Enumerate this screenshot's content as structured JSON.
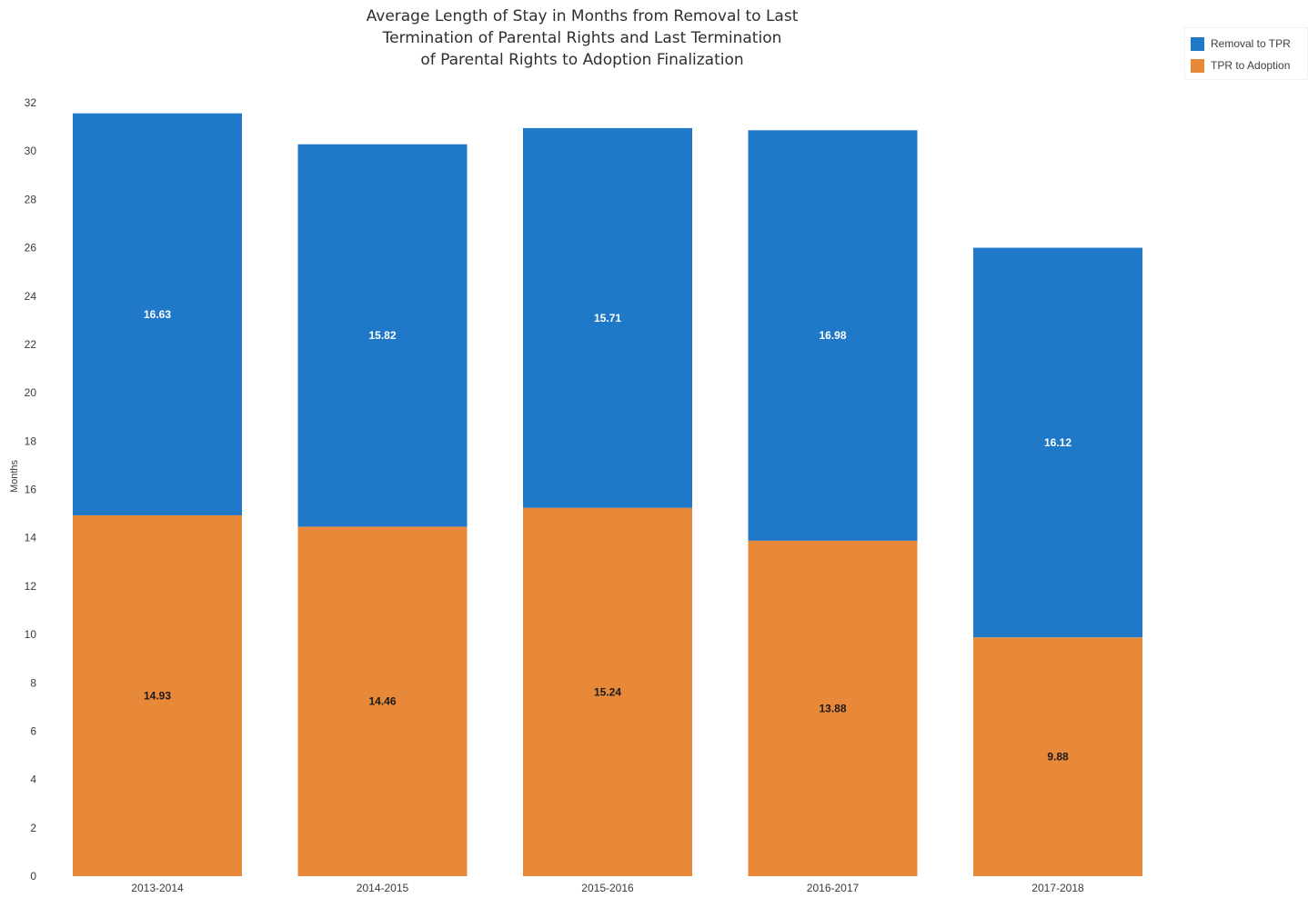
{
  "chart_data": {
    "type": "bar",
    "stacked": true,
    "title_lines": [
      "Average Length of Stay in Months from Removal to Last",
      "Termination of Parental Rights and Last Termination",
      "of Parental Rights to Adoption Finalization"
    ],
    "ylabel": "Months",
    "xlabel": "",
    "ylim": [
      0,
      32
    ],
    "yticks": [
      0,
      2,
      4,
      6,
      8,
      10,
      12,
      14,
      16,
      18,
      20,
      22,
      24,
      26,
      28,
      30,
      32
    ],
    "grid": false,
    "legend_position": "top-right",
    "categories": [
      "2013-2014",
      "2014-2015",
      "2015-2016",
      "2016-2017",
      "2017-2018"
    ],
    "series": [
      {
        "name": "TPR to Adoption",
        "color": "#e8893a",
        "label_color": "#1a1a1a",
        "values": [
          14.93,
          14.46,
          15.24,
          13.88,
          9.88
        ]
      },
      {
        "name": "Removal to TPR",
        "color": "#1f78c8",
        "label_color": "#ffffff",
        "values": [
          16.63,
          15.82,
          15.71,
          16.98,
          16.12
        ]
      }
    ]
  },
  "legend": {
    "items": [
      {
        "label": "Removal to TPR",
        "color": "#1f78c8"
      },
      {
        "label": "TPR to Adoption",
        "color": "#e8893a"
      }
    ]
  }
}
